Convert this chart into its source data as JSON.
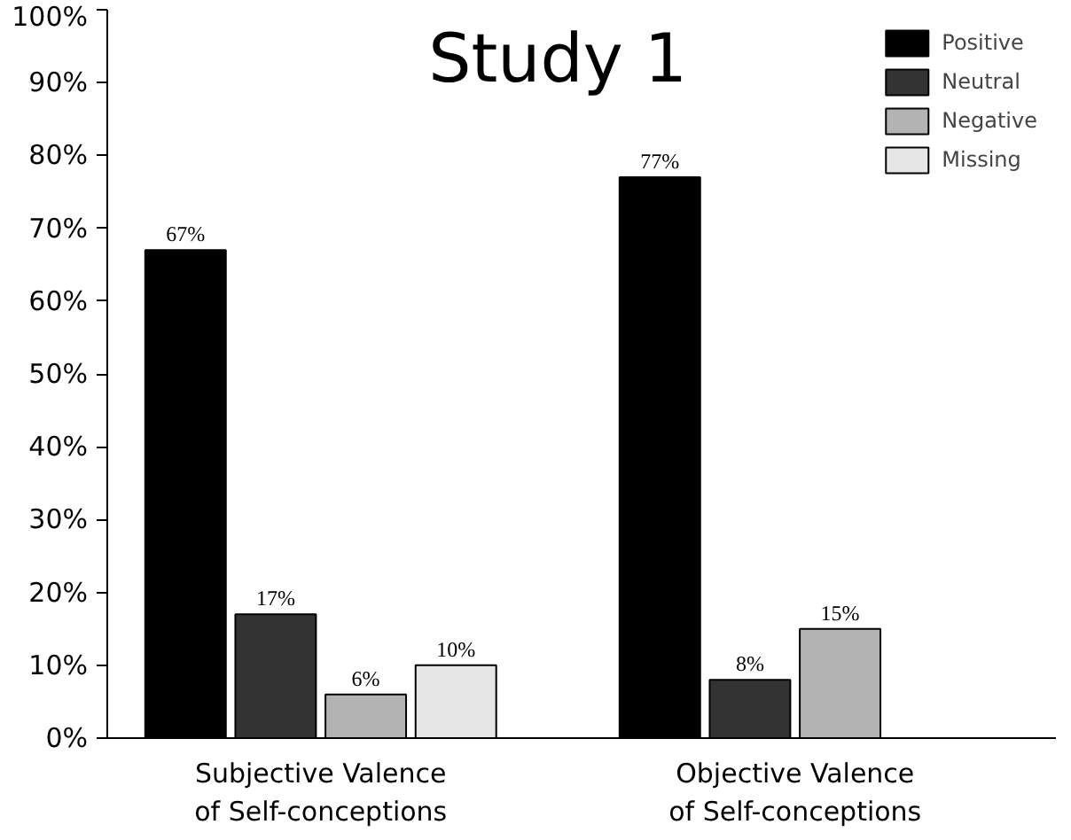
{
  "chart_data": {
    "type": "bar",
    "title": "Study 1",
    "categories": [
      "Subjective Valence\nof Self-conceptions",
      "Objective Valence\nof Self-conceptions"
    ],
    "series": [
      {
        "name": "Positive",
        "color": "#000000",
        "values": [
          67,
          77
        ],
        "value_labels": [
          "67%",
          "77%"
        ]
      },
      {
        "name": "Neutral",
        "color": "#333333",
        "values": [
          17,
          8
        ],
        "value_labels": [
          "17%",
          "8%"
        ]
      },
      {
        "name": "Negative",
        "color": "#b3b3b3",
        "values": [
          6,
          15
        ],
        "value_labels": [
          "6%",
          "15%"
        ]
      },
      {
        "name": "Missing",
        "color": "#e6e6e6",
        "values": [
          10,
          null
        ],
        "value_labels": [
          "10%",
          null
        ]
      }
    ],
    "ylim": [
      0,
      100
    ],
    "yticks": [
      {
        "value": 0,
        "label": "0%"
      },
      {
        "value": 10,
        "label": "10%"
      },
      {
        "value": 20,
        "label": "20%"
      },
      {
        "value": 30,
        "label": "30%"
      },
      {
        "value": 40,
        "label": "40%"
      },
      {
        "value": 50,
        "label": "50%"
      },
      {
        "value": 60,
        "label": "60%"
      },
      {
        "value": 70,
        "label": "70%"
      },
      {
        "value": 80,
        "label": "80%"
      },
      {
        "value": 90,
        "label": "90%"
      },
      {
        "value": 100,
        "label": "100%"
      }
    ],
    "grid": false,
    "legend": "top right"
  }
}
